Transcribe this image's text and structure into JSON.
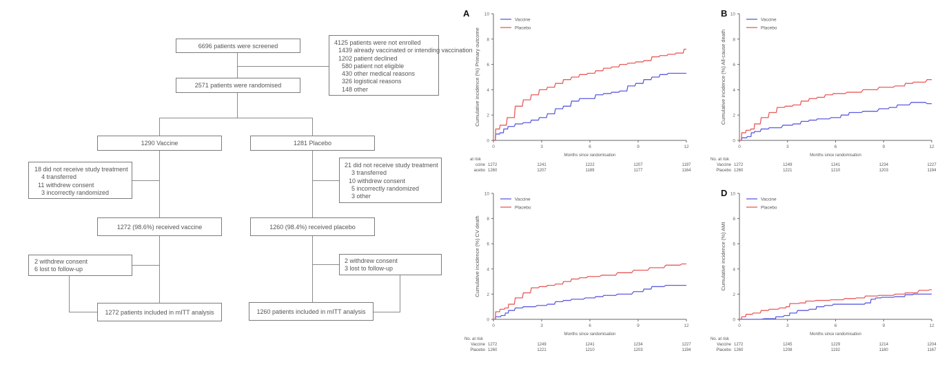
{
  "flowchart": {
    "screened": "6696 patients were screened",
    "not_enrolled": {
      "title": "4125 patients were not enrolled",
      "items": [
        "1439 already vaccinated or intending vaccination",
        "1202 patient declined",
        "580 patient not eligible",
        "430 other medical reasons",
        "326 logistical reasons",
        "148 other"
      ]
    },
    "randomised": "2571 patients were randomised",
    "vaccine_arm": {
      "allocated": "1290 Vaccine",
      "excluded": {
        "title": "18 did not receive study treatment",
        "items": [
          "4 transferred",
          "11 withdrew consent",
          "3 incorrectly randomized"
        ]
      },
      "received": "1272 (98.6%) received vaccine",
      "lost": [
        "2 withdrew consent",
        "6 lost to follow-up"
      ],
      "analysed": "1272 patients included in mITT analysis"
    },
    "placebo_arm": {
      "allocated": "1281 Placebo",
      "excluded": {
        "title": "21 did not receive study treatment",
        "items": [
          "3 transferred",
          "10 withdrew consent",
          "5 incorrectly randomized",
          "3 other"
        ]
      },
      "received": "1260 (98.4%) received placebo",
      "lost": [
        "2 withdrew consent",
        "3 lost to follow-up"
      ],
      "analysed": "1260 patients included in mITT analysis"
    }
  },
  "colors": {
    "vaccine": "#5b5be0",
    "placebo": "#e85a5a",
    "axis": "#666666"
  },
  "chart_data": [
    {
      "type": "line",
      "panel": "A",
      "ylabel": "Cumulative incidence (%)  Primary outcome",
      "xlabel": "Months since randomisation",
      "xlim": [
        0,
        12
      ],
      "ylim": [
        0,
        10
      ],
      "xticks": [
        0,
        3,
        6,
        9,
        12
      ],
      "yticks": [
        0,
        2,
        4,
        6,
        8,
        10
      ],
      "legend": "top-left",
      "series": [
        {
          "name": "Vaccine",
          "x": [
            0,
            0.2,
            0.5,
            0.7,
            1.0,
            1.5,
            2.0,
            2.5,
            3.0,
            3.5,
            4.0,
            4.5,
            5.0,
            5.5,
            6.0,
            6.5,
            7.0,
            7.5,
            8.0,
            8.5,
            9.0,
            9.5,
            10.0,
            10.5,
            11.0,
            12.0
          ],
          "y": [
            0,
            0.5,
            0.6,
            0.9,
            1.1,
            1.3,
            1.4,
            1.6,
            1.8,
            2.1,
            2.5,
            2.7,
            3.1,
            3.3,
            3.3,
            3.6,
            3.7,
            3.8,
            3.9,
            4.3,
            4.5,
            4.8,
            5.0,
            5.2,
            5.3,
            5.3
          ]
        },
        {
          "name": "Placebo",
          "x": [
            0,
            0.2,
            0.5,
            1.0,
            1.5,
            2.0,
            2.5,
            3.0,
            3.5,
            4.0,
            4.5,
            5.0,
            5.5,
            6.0,
            6.5,
            7.0,
            7.5,
            8.0,
            8.5,
            9.0,
            9.5,
            10.0,
            10.5,
            11.0,
            11.5,
            12.0
          ],
          "y": [
            0,
            0.9,
            1.2,
            1.8,
            2.7,
            3.2,
            3.6,
            4.0,
            4.2,
            4.5,
            4.8,
            5.0,
            5.2,
            5.3,
            5.5,
            5.7,
            5.8,
            6.0,
            6.1,
            6.2,
            6.3,
            6.6,
            6.7,
            6.8,
            6.9,
            7.2
          ]
        }
      ],
      "risk_table": {
        "header": "at risk",
        "rows": [
          {
            "label": "ccine",
            "values": [
              1272,
              1241,
              1222,
              1207,
              1197
            ]
          },
          {
            "label": "acebo",
            "values": [
              1260,
              1207,
              1189,
              1177,
              1164
            ]
          }
        ]
      }
    },
    {
      "type": "line",
      "panel": "B",
      "ylabel": "Cumulative incidence (%)  All-cause death",
      "xlabel": "Months since randomisation",
      "xlim": [
        0,
        12
      ],
      "ylim": [
        0,
        10
      ],
      "xticks": [
        0,
        3,
        6,
        9,
        12
      ],
      "yticks": [
        0,
        2,
        4,
        6,
        8,
        10
      ],
      "legend": "top-left",
      "series": [
        {
          "name": "Vaccine",
          "x": [
            0,
            0.2,
            0.6,
            0.8,
            1.0,
            1.5,
            2.0,
            3.0,
            3.5,
            4.0,
            4.5,
            5.0,
            6.0,
            6.5,
            7.0,
            8.0,
            9.0,
            9.5,
            10.0,
            11.0,
            12.0
          ],
          "y": [
            0,
            0.2,
            0.3,
            0.6,
            0.7,
            0.9,
            1.0,
            1.2,
            1.3,
            1.5,
            1.6,
            1.7,
            1.8,
            2.0,
            2.2,
            2.3,
            2.5,
            2.6,
            2.8,
            3.0,
            2.9
          ]
        },
        {
          "name": "Placebo",
          "x": [
            0,
            0.2,
            0.5,
            0.8,
            1.0,
            1.5,
            2.0,
            2.5,
            3.0,
            3.5,
            4.0,
            4.5,
            5.0,
            5.5,
            6.0,
            7.0,
            8.0,
            9.0,
            10.0,
            10.5,
            11.0,
            12.0
          ],
          "y": [
            0,
            0.6,
            0.8,
            0.9,
            1.3,
            1.8,
            2.2,
            2.6,
            2.7,
            2.8,
            3.1,
            3.3,
            3.4,
            3.6,
            3.7,
            3.8,
            4.0,
            4.2,
            4.3,
            4.5,
            4.6,
            4.8
          ]
        }
      ],
      "risk_table": {
        "header": "No. at risk",
        "rows": [
          {
            "label": "Vaccine",
            "values": [
              1272,
              1249,
              1241,
              1234,
              1227
            ]
          },
          {
            "label": "Placebo",
            "values": [
              1260,
              1221,
              1210,
              1203,
              1194
            ]
          }
        ]
      }
    },
    {
      "type": "line",
      "panel": "C",
      "ylabel": "Cumulative incidence (%)  CV death",
      "xlabel": "Months since randomisation",
      "xlim": [
        0,
        12
      ],
      "ylim": [
        0,
        10
      ],
      "xticks": [
        0,
        3,
        6,
        9,
        12
      ],
      "yticks": [
        0,
        2,
        4,
        6,
        8,
        10
      ],
      "legend": "top-left",
      "series": [
        {
          "name": "Vaccine",
          "x": [
            0,
            0.2,
            0.6,
            0.8,
            1.0,
            1.5,
            2.0,
            3.0,
            3.5,
            4.0,
            4.5,
            5.0,
            6.0,
            6.5,
            7.0,
            8.0,
            9.0,
            9.5,
            10.0,
            11.0,
            12.0
          ],
          "y": [
            0,
            0.2,
            0.3,
            0.5,
            0.7,
            0.9,
            1.0,
            1.1,
            1.2,
            1.4,
            1.5,
            1.6,
            1.7,
            1.8,
            1.9,
            2.0,
            2.2,
            2.4,
            2.6,
            2.7,
            2.7
          ]
        },
        {
          "name": "Placebo",
          "x": [
            0,
            0.2,
            0.5,
            0.8,
            1.0,
            1.5,
            2.0,
            2.5,
            3.0,
            3.5,
            4.0,
            4.5,
            5.0,
            5.5,
            6.0,
            7.0,
            8.0,
            9.0,
            10.0,
            11.0,
            12.0
          ],
          "y": [
            0,
            0.6,
            0.8,
            0.9,
            1.2,
            1.7,
            2.1,
            2.5,
            2.6,
            2.7,
            2.8,
            3.0,
            3.2,
            3.3,
            3.4,
            3.5,
            3.7,
            3.9,
            4.1,
            4.3,
            4.4
          ]
        }
      ],
      "risk_table": {
        "header": "No. at risk",
        "rows": [
          {
            "label": "Vaccine",
            "values": [
              1272,
              1249,
              1241,
              1234,
              1227
            ]
          },
          {
            "label": "Placebo",
            "values": [
              1260,
              1221,
              1210,
              1203,
              1194
            ]
          }
        ]
      }
    },
    {
      "type": "line",
      "panel": "D",
      "ylabel": "Cumulative incidence (%)  AMI",
      "xlabel": "Months since randomisation",
      "xlim": [
        0,
        12
      ],
      "ylim": [
        0,
        10
      ],
      "xticks": [
        0,
        3,
        6,
        9,
        12
      ],
      "yticks": [
        0,
        2,
        4,
        6,
        8,
        10
      ],
      "legend": "top-left",
      "series": [
        {
          "name": "Vaccine",
          "x": [
            0,
            2.2,
            2.3,
            3.0,
            3.2,
            3.8,
            4.6,
            4.9,
            5.5,
            6.0,
            7.5,
            8.0,
            8.3,
            8.6,
            9.0,
            10.0,
            10.5,
            11.0,
            12.0
          ],
          "y": [
            0,
            0.05,
            0.2,
            0.3,
            0.5,
            0.7,
            0.8,
            1.0,
            1.1,
            1.2,
            1.2,
            1.3,
            1.6,
            1.7,
            1.75,
            1.8,
            1.95,
            2.0,
            2.0
          ]
        },
        {
          "name": "Placebo",
          "x": [
            0,
            0.2,
            0.5,
            1.0,
            1.5,
            2.0,
            2.7,
            3.0,
            3.2,
            4.0,
            4.2,
            5.0,
            6.0,
            6.8,
            7.5,
            8.0,
            9.0,
            10.0,
            10.5,
            11.5,
            12.0
          ],
          "y": [
            0,
            0.2,
            0.4,
            0.5,
            0.7,
            0.8,
            0.9,
            1.0,
            1.25,
            1.3,
            1.45,
            1.5,
            1.55,
            1.65,
            1.7,
            1.85,
            1.9,
            2.0,
            2.1,
            2.3,
            2.35
          ]
        }
      ],
      "risk_table": {
        "header": "No. at risk",
        "rows": [
          {
            "label": "Vaccine",
            "values": [
              1272,
              1245,
              1229,
              1214,
              1204
            ]
          },
          {
            "label": "Placebo",
            "values": [
              1260,
              1208,
              1192,
              1180,
              1167
            ]
          }
        ]
      }
    }
  ]
}
